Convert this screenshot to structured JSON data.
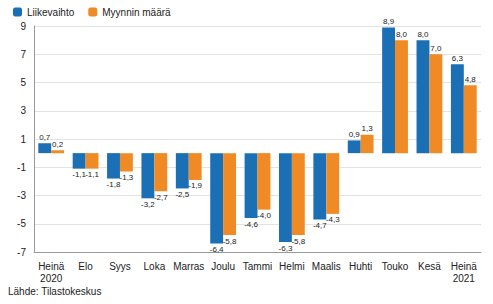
{
  "chart_data": {
    "type": "bar",
    "categories": [
      "Heinä\n2020",
      "Elo",
      "Syys",
      "Loka",
      "Marras",
      "Joulu",
      "Tammi",
      "Helmi",
      "Maalis",
      "Huhti",
      "Touko",
      "Kesä",
      "Heinä\n2021"
    ],
    "series": [
      {
        "name": "Liikevaihto",
        "color": "#1b6fb5",
        "values": [
          0.7,
          -1.1,
          -1.8,
          -3.2,
          -2.5,
          -6.4,
          -4.6,
          -6.3,
          -4.7,
          0.9,
          8.9,
          8.0,
          6.3
        ],
        "value_labels": [
          "0,7",
          "-1,1",
          "-1,8",
          "-3,2",
          "-2,5",
          "-6,4",
          "-4,6",
          "-6,3",
          "-4,7",
          "0,9",
          "8,9",
          "8,0",
          "6,3"
        ]
      },
      {
        "name": "Myynnin määrä",
        "color": "#f08a24",
        "values": [
          0.2,
          -1.1,
          -1.3,
          -2.7,
          -1.9,
          -5.8,
          -4.0,
          -5.8,
          -4.3,
          1.3,
          8.0,
          7.0,
          4.8
        ],
        "value_labels": [
          "0,2",
          "-1,1",
          "-1,3",
          "-2,7",
          "-1,9",
          "-5,8",
          "-4,0",
          "-5,8",
          "-4,3",
          "1,3",
          "8,0",
          "7,0",
          "4,8"
        ]
      }
    ],
    "ylim": [
      -7,
      9
    ],
    "yticks": [
      -7,
      -5,
      -3,
      -1,
      1,
      3,
      5,
      7,
      9
    ],
    "grid": true,
    "legend": "top-left",
    "data_labels": true,
    "source": "Lähde: Tilastokeskus"
  }
}
